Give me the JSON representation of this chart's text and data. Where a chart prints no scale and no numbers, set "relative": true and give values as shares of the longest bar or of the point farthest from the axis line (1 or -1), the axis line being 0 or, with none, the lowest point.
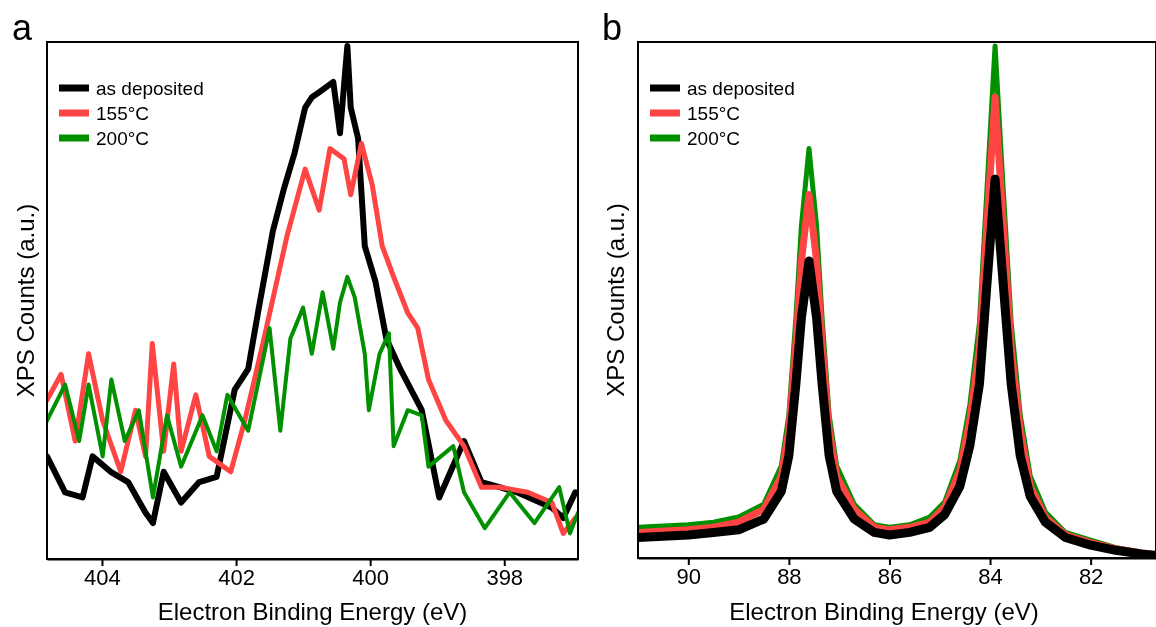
{
  "chart_data": [
    {
      "type": "line",
      "title": "a",
      "xlabel": "Electron Binding Energy (eV)",
      "ylabel": "XPS Counts (a.u.)",
      "relative": true,
      "xlim": [
        404.82,
        396.9
      ],
      "xticks": [
        404,
        402,
        400,
        398
      ],
      "legend": "top left",
      "tick_labels": "x",
      "series": [
        {
          "name": "as deposited",
          "color": "#000000",
          "x": [
            404.82,
            404.55,
            404.29,
            404.14,
            403.87,
            403.61,
            403.35,
            403.24,
            403.08,
            402.82,
            402.55,
            402.29,
            402.02,
            401.82,
            401.66,
            401.45,
            401.29,
            401.13,
            400.97,
            400.87,
            400.76,
            400.55,
            400.45,
            400.34,
            400.29,
            400.18,
            400.08,
            399.92,
            399.76,
            399.55,
            399.39,
            399.23,
            398.97,
            398.6,
            398.34,
            398.07,
            397.81,
            397.29,
            397.12,
            396.94
          ],
          "values": [
            0.2,
            0.13,
            0.12,
            0.2,
            0.17,
            0.15,
            0.09,
            0.07,
            0.17,
            0.11,
            0.15,
            0.16,
            0.33,
            0.37,
            0.49,
            0.64,
            0.72,
            0.79,
            0.88,
            0.9,
            0.91,
            0.93,
            0.83,
            1.0,
            0.88,
            0.82,
            0.61,
            0.54,
            0.43,
            0.37,
            0.33,
            0.29,
            0.12,
            0.23,
            0.15,
            0.14,
            0.13,
            0.1,
            0.08,
            0.13
          ]
        },
        {
          "name": "155°C",
          "color": "#ff4444",
          "x": [
            404.82,
            404.61,
            404.4,
            404.2,
            403.99,
            403.72,
            403.5,
            403.35,
            403.25,
            403.08,
            402.93,
            402.82,
            402.6,
            402.4,
            402.08,
            401.87,
            401.6,
            401.24,
            400.97,
            400.76,
            400.6,
            400.39,
            400.29,
            400.13,
            399.97,
            399.82,
            399.65,
            399.44,
            399.29,
            399.13,
            398.87,
            398.6,
            398.34,
            398.07,
            397.65,
            397.29,
            397.12,
            396.94
          ],
          "values": [
            0.31,
            0.36,
            0.23,
            0.4,
            0.27,
            0.17,
            0.29,
            0.2,
            0.42,
            0.21,
            0.38,
            0.21,
            0.32,
            0.2,
            0.17,
            0.27,
            0.42,
            0.63,
            0.76,
            0.68,
            0.8,
            0.78,
            0.71,
            0.81,
            0.73,
            0.61,
            0.55,
            0.48,
            0.45,
            0.35,
            0.27,
            0.22,
            0.14,
            0.14,
            0.13,
            0.11,
            0.05,
            0.08
          ]
        },
        {
          "name": "200°C",
          "color": "#009000",
          "x": [
            404.82,
            404.55,
            404.34,
            404.2,
            403.99,
            403.86,
            403.66,
            403.45,
            403.24,
            403.03,
            402.82,
            402.5,
            402.29,
            402.13,
            401.82,
            401.5,
            401.34,
            401.19,
            401.0,
            400.87,
            400.71,
            400.55,
            400.45,
            400.34,
            400.23,
            400.08,
            400.02,
            399.86,
            399.72,
            399.65,
            399.44,
            399.23,
            399.13,
            398.76,
            398.6,
            398.29,
            397.92,
            397.55,
            397.18,
            397.02,
            396.9
          ],
          "values": [
            0.27,
            0.34,
            0.23,
            0.34,
            0.2,
            0.35,
            0.23,
            0.29,
            0.12,
            0.28,
            0.18,
            0.28,
            0.21,
            0.32,
            0.25,
            0.45,
            0.25,
            0.43,
            0.49,
            0.4,
            0.52,
            0.41,
            0.5,
            0.55,
            0.51,
            0.4,
            0.29,
            0.4,
            0.44,
            0.22,
            0.29,
            0.28,
            0.18,
            0.22,
            0.13,
            0.06,
            0.13,
            0.07,
            0.14,
            0.05,
            0.09
          ]
        }
      ]
    },
    {
      "type": "line",
      "title": "b",
      "xlabel": "Electron Binding Energy (eV)",
      "ylabel": "XPS Counts (a.u.)",
      "relative": true,
      "xlim": [
        91,
        80.7
      ],
      "xticks": [
        90,
        88,
        86,
        84,
        82
      ],
      "legend": "top left",
      "tick_labels": "x",
      "x": [
        91,
        90,
        89.5,
        89,
        88.5,
        88.15,
        88.0,
        87.86,
        87.75,
        87.6,
        87.45,
        87.34,
        87.2,
        87.05,
        86.7,
        86.3,
        86,
        85.6,
        85.2,
        84.9,
        84.6,
        84.4,
        84.21,
        84.05,
        83.9,
        83.75,
        83.58,
        83.4,
        83.2,
        82.9,
        82.5,
        82,
        81.5,
        81,
        80.7
      ],
      "series": [
        {
          "name": "as deposited",
          "color": "#000000",
          "values": [
            0.04,
            0.045,
            0.05,
            0.055,
            0.076,
            0.13,
            0.2,
            0.34,
            0.47,
            0.58,
            0.47,
            0.34,
            0.2,
            0.13,
            0.076,
            0.05,
            0.045,
            0.05,
            0.06,
            0.085,
            0.14,
            0.22,
            0.34,
            0.55,
            0.74,
            0.55,
            0.34,
            0.2,
            0.12,
            0.07,
            0.04,
            0.025,
            0.015,
            0.008,
            0.005
          ]
        },
        {
          "name": "155°C",
          "color": "#ff4444",
          "values": [
            0.05,
            0.055,
            0.06,
            0.07,
            0.095,
            0.16,
            0.25,
            0.42,
            0.58,
            0.71,
            0.58,
            0.42,
            0.25,
            0.16,
            0.095,
            0.06,
            0.055,
            0.06,
            0.07,
            0.1,
            0.17,
            0.27,
            0.41,
            0.67,
            0.9,
            0.67,
            0.41,
            0.25,
            0.14,
            0.08,
            0.045,
            0.03,
            0.018,
            0.01,
            0.007
          ]
        },
        {
          "name": "200°C",
          "color": "#009000",
          "values": [
            0.06,
            0.065,
            0.07,
            0.08,
            0.105,
            0.18,
            0.28,
            0.47,
            0.65,
            0.8,
            0.65,
            0.47,
            0.28,
            0.18,
            0.105,
            0.065,
            0.06,
            0.065,
            0.08,
            0.11,
            0.19,
            0.3,
            0.46,
            0.74,
            1.0,
            0.74,
            0.46,
            0.28,
            0.16,
            0.09,
            0.05,
            0.035,
            0.02,
            0.012,
            null
          ]
        }
      ]
    }
  ]
}
